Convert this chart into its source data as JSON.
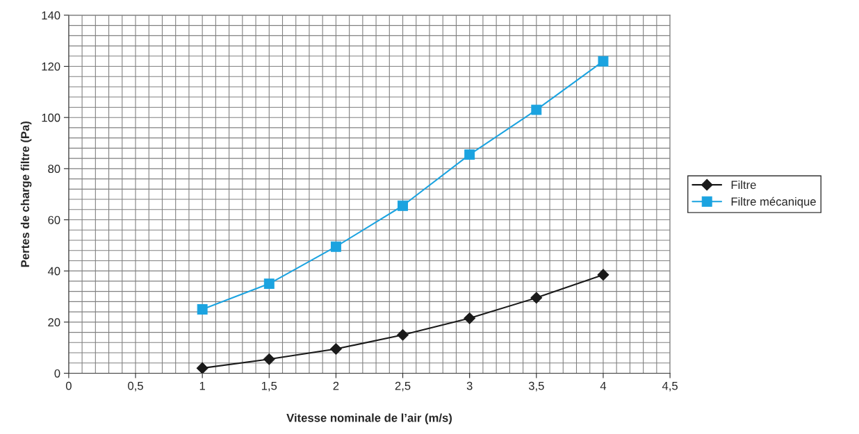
{
  "chart_data": {
    "type": "line",
    "xlabel": "Vitesse nominale de l’air (m/s)",
    "ylabel": "Pertes de charge filtre (Pa)",
    "x": [
      1,
      1.5,
      2,
      2.5,
      3,
      3.5,
      4
    ],
    "series": [
      {
        "name": "Filtre",
        "color": "#1a1a1a",
        "marker": "diamond",
        "values": [
          2,
          5.5,
          9.5,
          15,
          21.5,
          29.5,
          38.5
        ]
      },
      {
        "name": "Filtre mécanique",
        "color": "#1ba3e0",
        "marker": "square",
        "values": [
          25,
          35,
          49.5,
          65.5,
          85.5,
          103,
          122
        ]
      }
    ],
    "xlim": [
      0,
      4.5
    ],
    "xticks": [
      {
        "value": 0,
        "label": "0"
      },
      {
        "value": 0.5,
        "label": "0,5"
      },
      {
        "value": 1,
        "label": "1"
      },
      {
        "value": 1.5,
        "label": "1,5"
      },
      {
        "value": 2,
        "label": "2"
      },
      {
        "value": 2.5,
        "label": "2,5"
      },
      {
        "value": 3,
        "label": "3"
      },
      {
        "value": 3.5,
        "label": "3,5"
      },
      {
        "value": 4,
        "label": "4"
      },
      {
        "value": 4.5,
        "label": "4,5"
      }
    ],
    "ylim": [
      0,
      140
    ],
    "yticks": [
      0,
      20,
      40,
      60,
      80,
      100,
      120,
      140
    ],
    "grid": true,
    "legend": "right"
  }
}
